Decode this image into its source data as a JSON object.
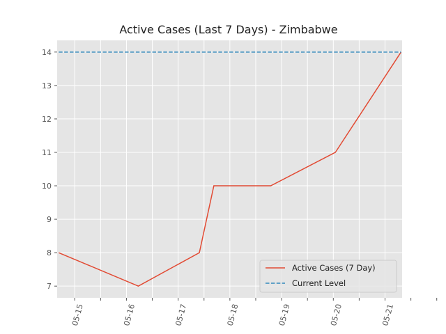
{
  "chart_data": {
    "type": "line",
    "title": "Active Cases (Last 7 Days) - Zimbabwe",
    "xlabel": "",
    "ylabel": "",
    "x_tick_labels": [
      "05-15",
      "05-16",
      "05-17",
      "05-18",
      "05-19",
      "05-20",
      "05-21"
    ],
    "x_tick_count": 15,
    "x_range_days": [
      -0.34,
      6.33
    ],
    "y_range": [
      6.65,
      14.35
    ],
    "y_ticks": [
      7,
      8,
      9,
      10,
      11,
      12,
      13,
      14
    ],
    "grid": true,
    "legend_position": "lower-right",
    "series": [
      {
        "name": "Active Cases (7 Day)",
        "style": "solid",
        "color": "#E24A33",
        "points": [
          {
            "x": "05-15",
            "y": 8
          },
          {
            "x": "05-16",
            "y": 7
          },
          {
            "x": "05-17",
            "y": 8
          },
          {
            "x": "05-18",
            "y": 10
          },
          {
            "x": "05-19",
            "y": 10
          },
          {
            "x": "05-20",
            "y": 11
          },
          {
            "x": "05-21",
            "y": 14
          }
        ]
      },
      {
        "name": "Current Level",
        "style": "dashed",
        "color": "#348ABD",
        "points": [
          {
            "x": "05-15",
            "y": 14
          },
          {
            "x": "05-21",
            "y": 14
          }
        ]
      }
    ],
    "colors": {
      "plot_background": "#E5E5E5",
      "grid": "#FFFFFF",
      "text": "#555555"
    }
  }
}
